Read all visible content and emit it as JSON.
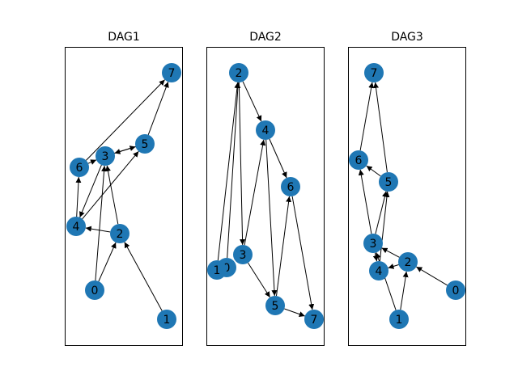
{
  "figure": {
    "node_color": "#1f77b4",
    "edge_color": "#000000",
    "background": "#ffffff"
  },
  "dags": [
    {
      "title": "DAG1",
      "nodes": [
        "0",
        "1",
        "2",
        "3",
        "4",
        "5",
        "6",
        "7"
      ],
      "edges": [
        [
          "0",
          "2"
        ],
        [
          "0",
          "3"
        ],
        [
          "1",
          "2"
        ],
        [
          "2",
          "3"
        ],
        [
          "2",
          "4"
        ],
        [
          "3",
          "4"
        ],
        [
          "3",
          "5"
        ],
        [
          "4",
          "5"
        ],
        [
          "4",
          "6"
        ],
        [
          "5",
          "3"
        ],
        [
          "5",
          "7"
        ],
        [
          "6",
          "3"
        ],
        [
          "6",
          "7"
        ]
      ]
    },
    {
      "title": "DAG2",
      "nodes": [
        "0",
        "1",
        "2",
        "3",
        "4",
        "5",
        "6",
        "7"
      ],
      "edges": [
        [
          "0",
          "2"
        ],
        [
          "1",
          "2"
        ],
        [
          "2",
          "3"
        ],
        [
          "2",
          "4"
        ],
        [
          "3",
          "4"
        ],
        [
          "3",
          "5"
        ],
        [
          "4",
          "5"
        ],
        [
          "4",
          "6"
        ],
        [
          "5",
          "6"
        ],
        [
          "5",
          "7"
        ],
        [
          "6",
          "7"
        ]
      ]
    },
    {
      "title": "DAG3",
      "nodes": [
        "0",
        "1",
        "2",
        "3",
        "4",
        "5",
        "6",
        "7"
      ],
      "edges": [
        [
          "0",
          "2"
        ],
        [
          "1",
          "2"
        ],
        [
          "1",
          "3"
        ],
        [
          "2",
          "3"
        ],
        [
          "2",
          "4"
        ],
        [
          "3",
          "4"
        ],
        [
          "3",
          "5"
        ],
        [
          "4",
          "5"
        ],
        [
          "3",
          "6"
        ],
        [
          "5",
          "6"
        ],
        [
          "5",
          "7"
        ],
        [
          "6",
          "7"
        ]
      ]
    }
  ]
}
